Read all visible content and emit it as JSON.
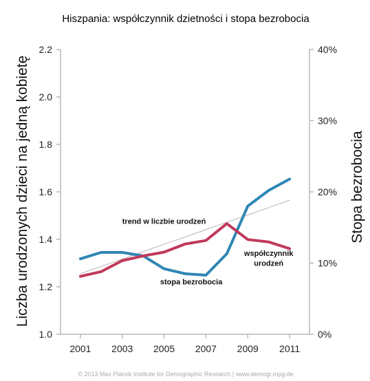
{
  "chart_data": {
    "type": "line",
    "title": "Hiszpania: współczynnik dzietności i stopa bezrobocia",
    "ylabel": "Liczba urodzonych dzieci na jedną kobietę",
    "y2label": "Stopa bezrobocia",
    "x": [
      2001,
      2002,
      2003,
      2004,
      2005,
      2006,
      2007,
      2008,
      2009,
      2010,
      2011
    ],
    "x_tick_labels": [
      "2001",
      "2003",
      "2005",
      "2007",
      "2009",
      "2011"
    ],
    "x_tick_values": [
      2001,
      2003,
      2005,
      2007,
      2009,
      2011
    ],
    "xlim": [
      2000.05,
      2011.95
    ],
    "ylim": [
      1.0,
      2.2
    ],
    "y_tick_labels": [
      "1.0",
      "1.2",
      "1.4",
      "1.6",
      "1.8",
      "2.0",
      "2.2"
    ],
    "y_tick_values": [
      1.0,
      1.2,
      1.4,
      1.6,
      1.8,
      2.0,
      2.2
    ],
    "y2lim": [
      0,
      40
    ],
    "y2_tick_labels": [
      "0%",
      "10%",
      "20%",
      "30%",
      "40%"
    ],
    "y2_tick_values": [
      0,
      10,
      20,
      30,
      40
    ],
    "series": [
      {
        "name": "współczynnik urodzeń",
        "axis": "left",
        "color": "#c0395a",
        "values": [
          1.244,
          1.264,
          1.31,
          1.33,
          1.346,
          1.38,
          1.395,
          1.466,
          1.399,
          1.389,
          1.361
        ]
      },
      {
        "name": "stopa bezrobocia",
        "axis": "right",
        "color": "#2f86b4",
        "values": [
          10.6,
          11.5,
          11.5,
          11.0,
          9.2,
          8.5,
          8.3,
          11.3,
          18.0,
          20.2,
          21.8
        ]
      },
      {
        "name": "trend w liczbie urodzeń",
        "axis": "left",
        "color": "#b5b5b5",
        "values": [
          1.255,
          1.286,
          1.317,
          1.348,
          1.379,
          1.41,
          1.441,
          1.472,
          1.503,
          1.534,
          1.565
        ]
      }
    ],
    "annotations": [
      {
        "text": "trend w liczbie urodzeń",
        "x": 2005.0,
        "y": 1.465
      },
      {
        "text": "współczynnik",
        "x": 2010.0,
        "y": 1.33
      },
      {
        "text": "urodzeń",
        "x": 2010.0,
        "y": 1.288
      },
      {
        "text": "stopa bezrobocia",
        "x": 2006.3,
        "y": 1.21
      }
    ],
    "grid": false,
    "legend": "none"
  },
  "footer": "© 2013 Max Planck Institute for Demographic Research | www.demogr.mpg.de"
}
